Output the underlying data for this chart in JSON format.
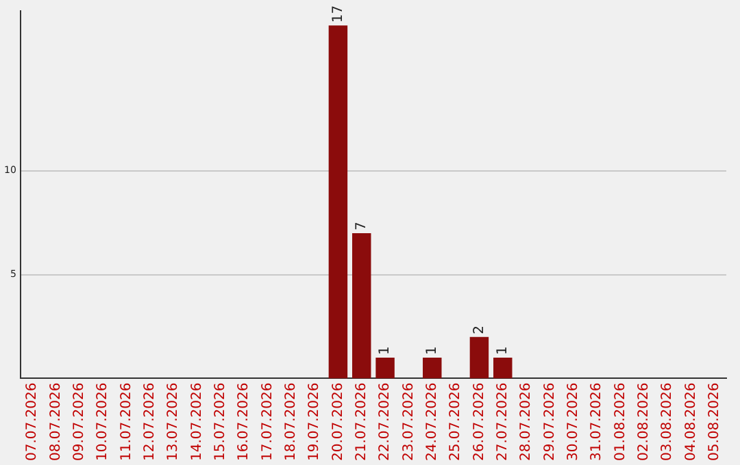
{
  "chart_data": {
    "type": "bar",
    "categories": [
      "07.07.2026",
      "08.07.2026",
      "09.07.2026",
      "10.07.2026",
      "11.07.2026",
      "12.07.2026",
      "13.07.2026",
      "14.07.2026",
      "15.07.2026",
      "16.07.2026",
      "17.07.2026",
      "18.07.2026",
      "19.07.2026",
      "20.07.2026",
      "21.07.2026",
      "22.07.2026",
      "23.07.2026",
      "24.07.2026",
      "25.07.2026",
      "26.07.2026",
      "27.07.2026",
      "28.07.2026",
      "29.07.2026",
      "30.07.2026",
      "31.07.2026",
      "01.08.2026",
      "02.08.2026",
      "03.08.2026",
      "04.08.2026",
      "05.08.2026"
    ],
    "values": [
      0,
      0,
      0,
      0,
      0,
      0,
      0,
      0,
      0,
      0,
      0,
      0,
      0,
      17,
      7,
      1,
      0,
      1,
      0,
      2,
      1,
      0,
      0,
      0,
      0,
      0,
      0,
      0,
      0,
      0
    ],
    "value_labels": [
      null,
      null,
      null,
      null,
      null,
      null,
      null,
      null,
      null,
      null,
      null,
      null,
      null,
      "17",
      "7",
      "1",
      null,
      "1",
      null,
      "2",
      "1",
      null,
      null,
      null,
      null,
      null,
      null,
      null,
      null,
      null
    ],
    "color": "#8b0c0c",
    "ylim": [
      0,
      17.7
    ],
    "yticks": [
      5,
      10
    ],
    "grid": "y",
    "legend": false
  }
}
